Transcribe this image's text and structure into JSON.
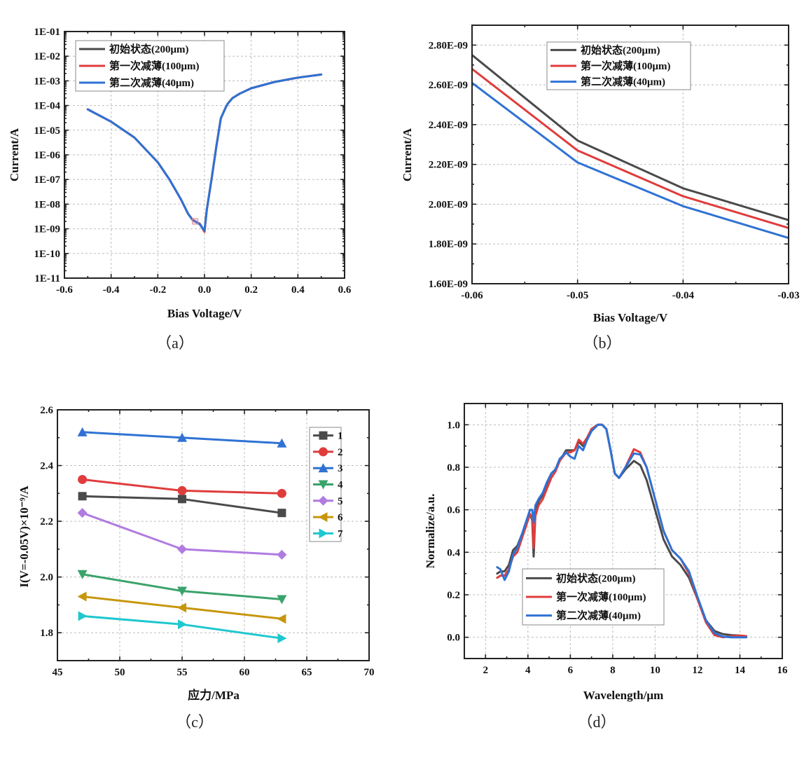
{
  "chart_data": [
    {
      "id": "a",
      "type": "line",
      "caption": "（a）",
      "xlabel": "Bias Voltage/V",
      "ylabel": "Current/A",
      "xlim": [
        -0.6,
        0.6
      ],
      "ylim_log10": [
        -11,
        -1
      ],
      "yscale": "log",
      "xticks": [
        "-0.6",
        "-0.4",
        "-0.2",
        "0.0",
        "0.2",
        "0.4",
        "0.6"
      ],
      "yticks": [
        "1E-11",
        "1E-10",
        "1E-09",
        "1E-08",
        "1E-07",
        "1E-06",
        "1E-05",
        "1E-04",
        "1E-03",
        "1E-02",
        "1E-01"
      ],
      "grid": true,
      "legend_position": "top-left",
      "annotation": "small square marker near (-0.04, 2E-09)",
      "series": [
        {
          "name": "初始状态(200μm)",
          "color": "#4a4a4a",
          "x": [
            -0.5,
            -0.4,
            -0.3,
            -0.2,
            -0.15,
            -0.1,
            -0.07,
            -0.05,
            -0.04,
            -0.02,
            0.0,
            0.01,
            0.03,
            0.05,
            0.07,
            0.09,
            0.1,
            0.12,
            0.15,
            0.2,
            0.3,
            0.4,
            0.5
          ],
          "y": [
            7e-05,
            2.2e-05,
            5e-06,
            5e-07,
            1e-07,
            1.5e-08,
            4e-09,
            2.3e-09,
            2e-09,
            1.6e-09,
            8e-10,
            6e-09,
            1e-07,
            2e-06,
            3e-05,
            8e-05,
            0.00012,
            0.0002,
            0.0003,
            0.0005,
            0.0009,
            0.00135,
            0.0018
          ]
        },
        {
          "name": "第一次减薄(100μm)",
          "color": "#e03c3c",
          "x": [
            -0.5,
            -0.4,
            -0.3,
            -0.2,
            -0.15,
            -0.1,
            -0.07,
            -0.05,
            -0.04,
            -0.02,
            0.0,
            0.01,
            0.03,
            0.05,
            0.07,
            0.09,
            0.1,
            0.12,
            0.15,
            0.2,
            0.3,
            0.4,
            0.5
          ],
          "y": [
            7e-05,
            2.2e-05,
            5e-06,
            5e-07,
            1e-07,
            1.5e-08,
            4e-09,
            2.27e-09,
            1.98e-09,
            1.55e-09,
            7.5e-10,
            6e-09,
            1e-07,
            2e-06,
            3e-05,
            8e-05,
            0.00012,
            0.0002,
            0.0003,
            0.0005,
            0.0009,
            0.00135,
            0.0018
          ]
        },
        {
          "name": "第二次减薄(40μm)",
          "color": "#2f72d4",
          "x": [
            -0.5,
            -0.4,
            -0.3,
            -0.2,
            -0.15,
            -0.1,
            -0.07,
            -0.05,
            -0.04,
            -0.02,
            0.0,
            0.01,
            0.03,
            0.05,
            0.07,
            0.09,
            0.1,
            0.12,
            0.15,
            0.2,
            0.3,
            0.4,
            0.5
          ],
          "y": [
            7e-05,
            2.2e-05,
            5e-06,
            5e-07,
            1e-07,
            1.5e-08,
            4e-09,
            2.21e-09,
            1.99e-09,
            1.5e-09,
            8.5e-10,
            6e-09,
            1e-07,
            2e-06,
            3e-05,
            8e-05,
            0.00012,
            0.0002,
            0.0003,
            0.0005,
            0.0009,
            0.00135,
            0.0018
          ]
        }
      ]
    },
    {
      "id": "b",
      "type": "line",
      "caption": "（b）",
      "xlabel": "Bias Voltage/V",
      "ylabel": "Current/A",
      "xlim": [
        -0.06,
        -0.03
      ],
      "ylim": [
        1.6e-09,
        2.9e-09
      ],
      "xticks": [
        "-0.06",
        "-0.05",
        "-0.04",
        "-0.03"
      ],
      "xtick_values": [
        -0.06,
        -0.05,
        -0.04,
        -0.03
      ],
      "yticks": [
        "1.60E-09",
        "1.80E-09",
        "2.00E-09",
        "2.20E-09",
        "2.40E-09",
        "2.60E-09",
        "2.80E-09"
      ],
      "ytick_values": [
        1.6e-09,
        1.8e-09,
        2e-09,
        2.2e-09,
        2.4e-09,
        2.6e-09,
        2.8e-09
      ],
      "grid": true,
      "legend_position": "top-center",
      "series": [
        {
          "name": "初始状态(200μm)",
          "color": "#4a4a4a",
          "x": [
            -0.06,
            -0.05,
            -0.04,
            -0.03
          ],
          "y": [
            2.75e-09,
            2.32e-09,
            2.08e-09,
            1.92e-09
          ]
        },
        {
          "name": "第一次减薄(100μm)",
          "color": "#e03c3c",
          "x": [
            -0.06,
            -0.05,
            -0.04,
            -0.03
          ],
          "y": [
            2.68e-09,
            2.27e-09,
            2.04e-09,
            1.88e-09
          ]
        },
        {
          "name": "第二次减薄(40μm)",
          "color": "#2f72d4",
          "x": [
            -0.06,
            -0.05,
            -0.04,
            -0.03
          ],
          "y": [
            2.61e-09,
            2.21e-09,
            1.99e-09,
            1.83e-09
          ]
        }
      ]
    },
    {
      "id": "c",
      "type": "line",
      "caption": "（c）",
      "xlabel": "应力/MPa",
      "ylabel": "I(V=-0.05V)×10⁻⁹/A",
      "xlim": [
        45,
        70
      ],
      "ylim": [
        1.7,
        2.6
      ],
      "xticks": [
        "45",
        "50",
        "55",
        "60",
        "65",
        "70"
      ],
      "xtick_values": [
        45,
        50,
        55,
        60,
        65,
        70
      ],
      "yticks": [
        "1.8",
        "2.0",
        "2.2",
        "2.4",
        "2.6"
      ],
      "ytick_values": [
        1.8,
        2.0,
        2.2,
        2.4,
        2.6
      ],
      "grid": true,
      "legend_position": "top-right",
      "x": [
        47,
        55,
        63
      ],
      "series": [
        {
          "name": "1",
          "color": "#4a4a4a",
          "marker": "square",
          "values": [
            2.29,
            2.28,
            2.23
          ]
        },
        {
          "name": "2",
          "color": "#e03c3c",
          "marker": "circle",
          "values": [
            2.35,
            2.31,
            2.3
          ]
        },
        {
          "name": "3",
          "color": "#2f72d4",
          "marker": "triangle-up",
          "values": [
            2.52,
            2.5,
            2.48
          ]
        },
        {
          "name": "4",
          "color": "#3aa36a",
          "marker": "triangle-down",
          "values": [
            2.01,
            1.95,
            1.92
          ]
        },
        {
          "name": "5",
          "color": "#b07ce0",
          "marker": "diamond",
          "values": [
            2.23,
            2.1,
            2.08
          ]
        },
        {
          "name": "6",
          "color": "#c8960c",
          "marker": "triangle-left",
          "values": [
            1.93,
            1.89,
            1.85
          ]
        },
        {
          "name": "7",
          "color": "#1fc7cf",
          "marker": "triangle-right",
          "values": [
            1.86,
            1.83,
            1.78
          ]
        }
      ]
    },
    {
      "id": "d",
      "type": "line",
      "caption": "（d）",
      "xlabel": "Wavelength/μm",
      "ylabel": "Normalize/a.u.",
      "xlim": [
        1,
        16
      ],
      "ylim": [
        -0.1,
        1.1
      ],
      "xticks": [
        "2",
        "4",
        "6",
        "8",
        "10",
        "12",
        "14",
        "16"
      ],
      "xtick_values": [
        2,
        4,
        6,
        8,
        10,
        12,
        14,
        16
      ],
      "yticks": [
        "0.0",
        "0.2",
        "0.4",
        "0.6",
        "0.8",
        "1.0"
      ],
      "ytick_values": [
        0,
        0.2,
        0.4,
        0.6,
        0.8,
        1.0
      ],
      "grid": true,
      "legend_position": "bottom-center",
      "series": [
        {
          "name": "初始状态(200μm)",
          "color": "#4a4a4a",
          "x": [
            2.55,
            2.7,
            2.9,
            3.1,
            3.3,
            3.5,
            3.7,
            3.9,
            4.1,
            4.2,
            4.27,
            4.35,
            4.5,
            4.7,
            4.9,
            5.1,
            5.3,
            5.5,
            5.8,
            6.0,
            6.2,
            6.4,
            6.6,
            6.8,
            7.0,
            7.3,
            7.5,
            7.7,
            7.9,
            8.1,
            8.3,
            8.6,
            9.0,
            9.3,
            9.6,
            10.0,
            10.4,
            10.8,
            11.2,
            11.6,
            12.0,
            12.4,
            12.8,
            13.2,
            13.6,
            14.0,
            14.3
          ],
          "y": [
            0.3,
            0.31,
            0.31,
            0.34,
            0.41,
            0.43,
            0.48,
            0.53,
            0.58,
            0.55,
            0.38,
            0.58,
            0.64,
            0.67,
            0.72,
            0.77,
            0.79,
            0.83,
            0.88,
            0.88,
            0.88,
            0.92,
            0.9,
            0.94,
            0.98,
            1.0,
            1.0,
            0.98,
            0.88,
            0.77,
            0.75,
            0.79,
            0.83,
            0.81,
            0.74,
            0.6,
            0.46,
            0.38,
            0.34,
            0.28,
            0.18,
            0.08,
            0.03,
            0.015,
            0.01,
            0.008,
            0.005
          ]
        },
        {
          "name": "第一次减薄(100μm)",
          "color": "#e03c3c",
          "x": [
            2.55,
            2.7,
            2.9,
            3.1,
            3.3,
            3.5,
            3.7,
            3.9,
            4.1,
            4.2,
            4.27,
            4.35,
            4.5,
            4.7,
            4.9,
            5.1,
            5.3,
            5.5,
            5.8,
            6.0,
            6.2,
            6.4,
            6.6,
            6.8,
            7.0,
            7.3,
            7.5,
            7.7,
            7.9,
            8.1,
            8.3,
            8.6,
            9.0,
            9.3,
            9.6,
            10.0,
            10.4,
            10.8,
            11.2,
            11.6,
            12.0,
            12.4,
            12.8,
            13.2,
            13.6,
            14.0,
            14.3
          ],
          "y": [
            0.28,
            0.29,
            0.29,
            0.32,
            0.38,
            0.4,
            0.46,
            0.52,
            0.58,
            0.56,
            0.42,
            0.57,
            0.62,
            0.65,
            0.7,
            0.75,
            0.78,
            0.83,
            0.87,
            0.87,
            0.88,
            0.93,
            0.91,
            0.94,
            0.98,
            1.0,
            1.0,
            0.98,
            0.88,
            0.77,
            0.75,
            0.8,
            0.885,
            0.87,
            0.8,
            0.65,
            0.5,
            0.41,
            0.37,
            0.3,
            0.18,
            0.07,
            0.01,
            0.0,
            0.005,
            0.008,
            0.005
          ]
        },
        {
          "name": "第二次减薄(40μm)",
          "color": "#2f72d4",
          "x": [
            2.55,
            2.7,
            2.9,
            3.1,
            3.3,
            3.5,
            3.7,
            3.9,
            4.1,
            4.2,
            4.27,
            4.35,
            4.5,
            4.7,
            4.9,
            5.1,
            5.3,
            5.5,
            5.8,
            6.0,
            6.2,
            6.4,
            6.6,
            6.8,
            7.0,
            7.3,
            7.5,
            7.7,
            7.9,
            8.1,
            8.3,
            8.6,
            9.0,
            9.3,
            9.6,
            10.0,
            10.4,
            10.8,
            11.2,
            11.6,
            12.0,
            12.4,
            12.8,
            13.2,
            13.6,
            14.0,
            14.3
          ],
          "y": [
            0.33,
            0.32,
            0.27,
            0.31,
            0.39,
            0.42,
            0.48,
            0.54,
            0.6,
            0.6,
            0.54,
            0.62,
            0.65,
            0.68,
            0.73,
            0.77,
            0.79,
            0.84,
            0.87,
            0.85,
            0.84,
            0.9,
            0.88,
            0.93,
            0.97,
            1.0,
            1.0,
            0.98,
            0.88,
            0.77,
            0.75,
            0.8,
            0.865,
            0.86,
            0.8,
            0.65,
            0.5,
            0.41,
            0.37,
            0.31,
            0.19,
            0.08,
            0.02,
            0.003,
            0.0,
            0.0,
            0.0
          ]
        }
      ]
    }
  ]
}
